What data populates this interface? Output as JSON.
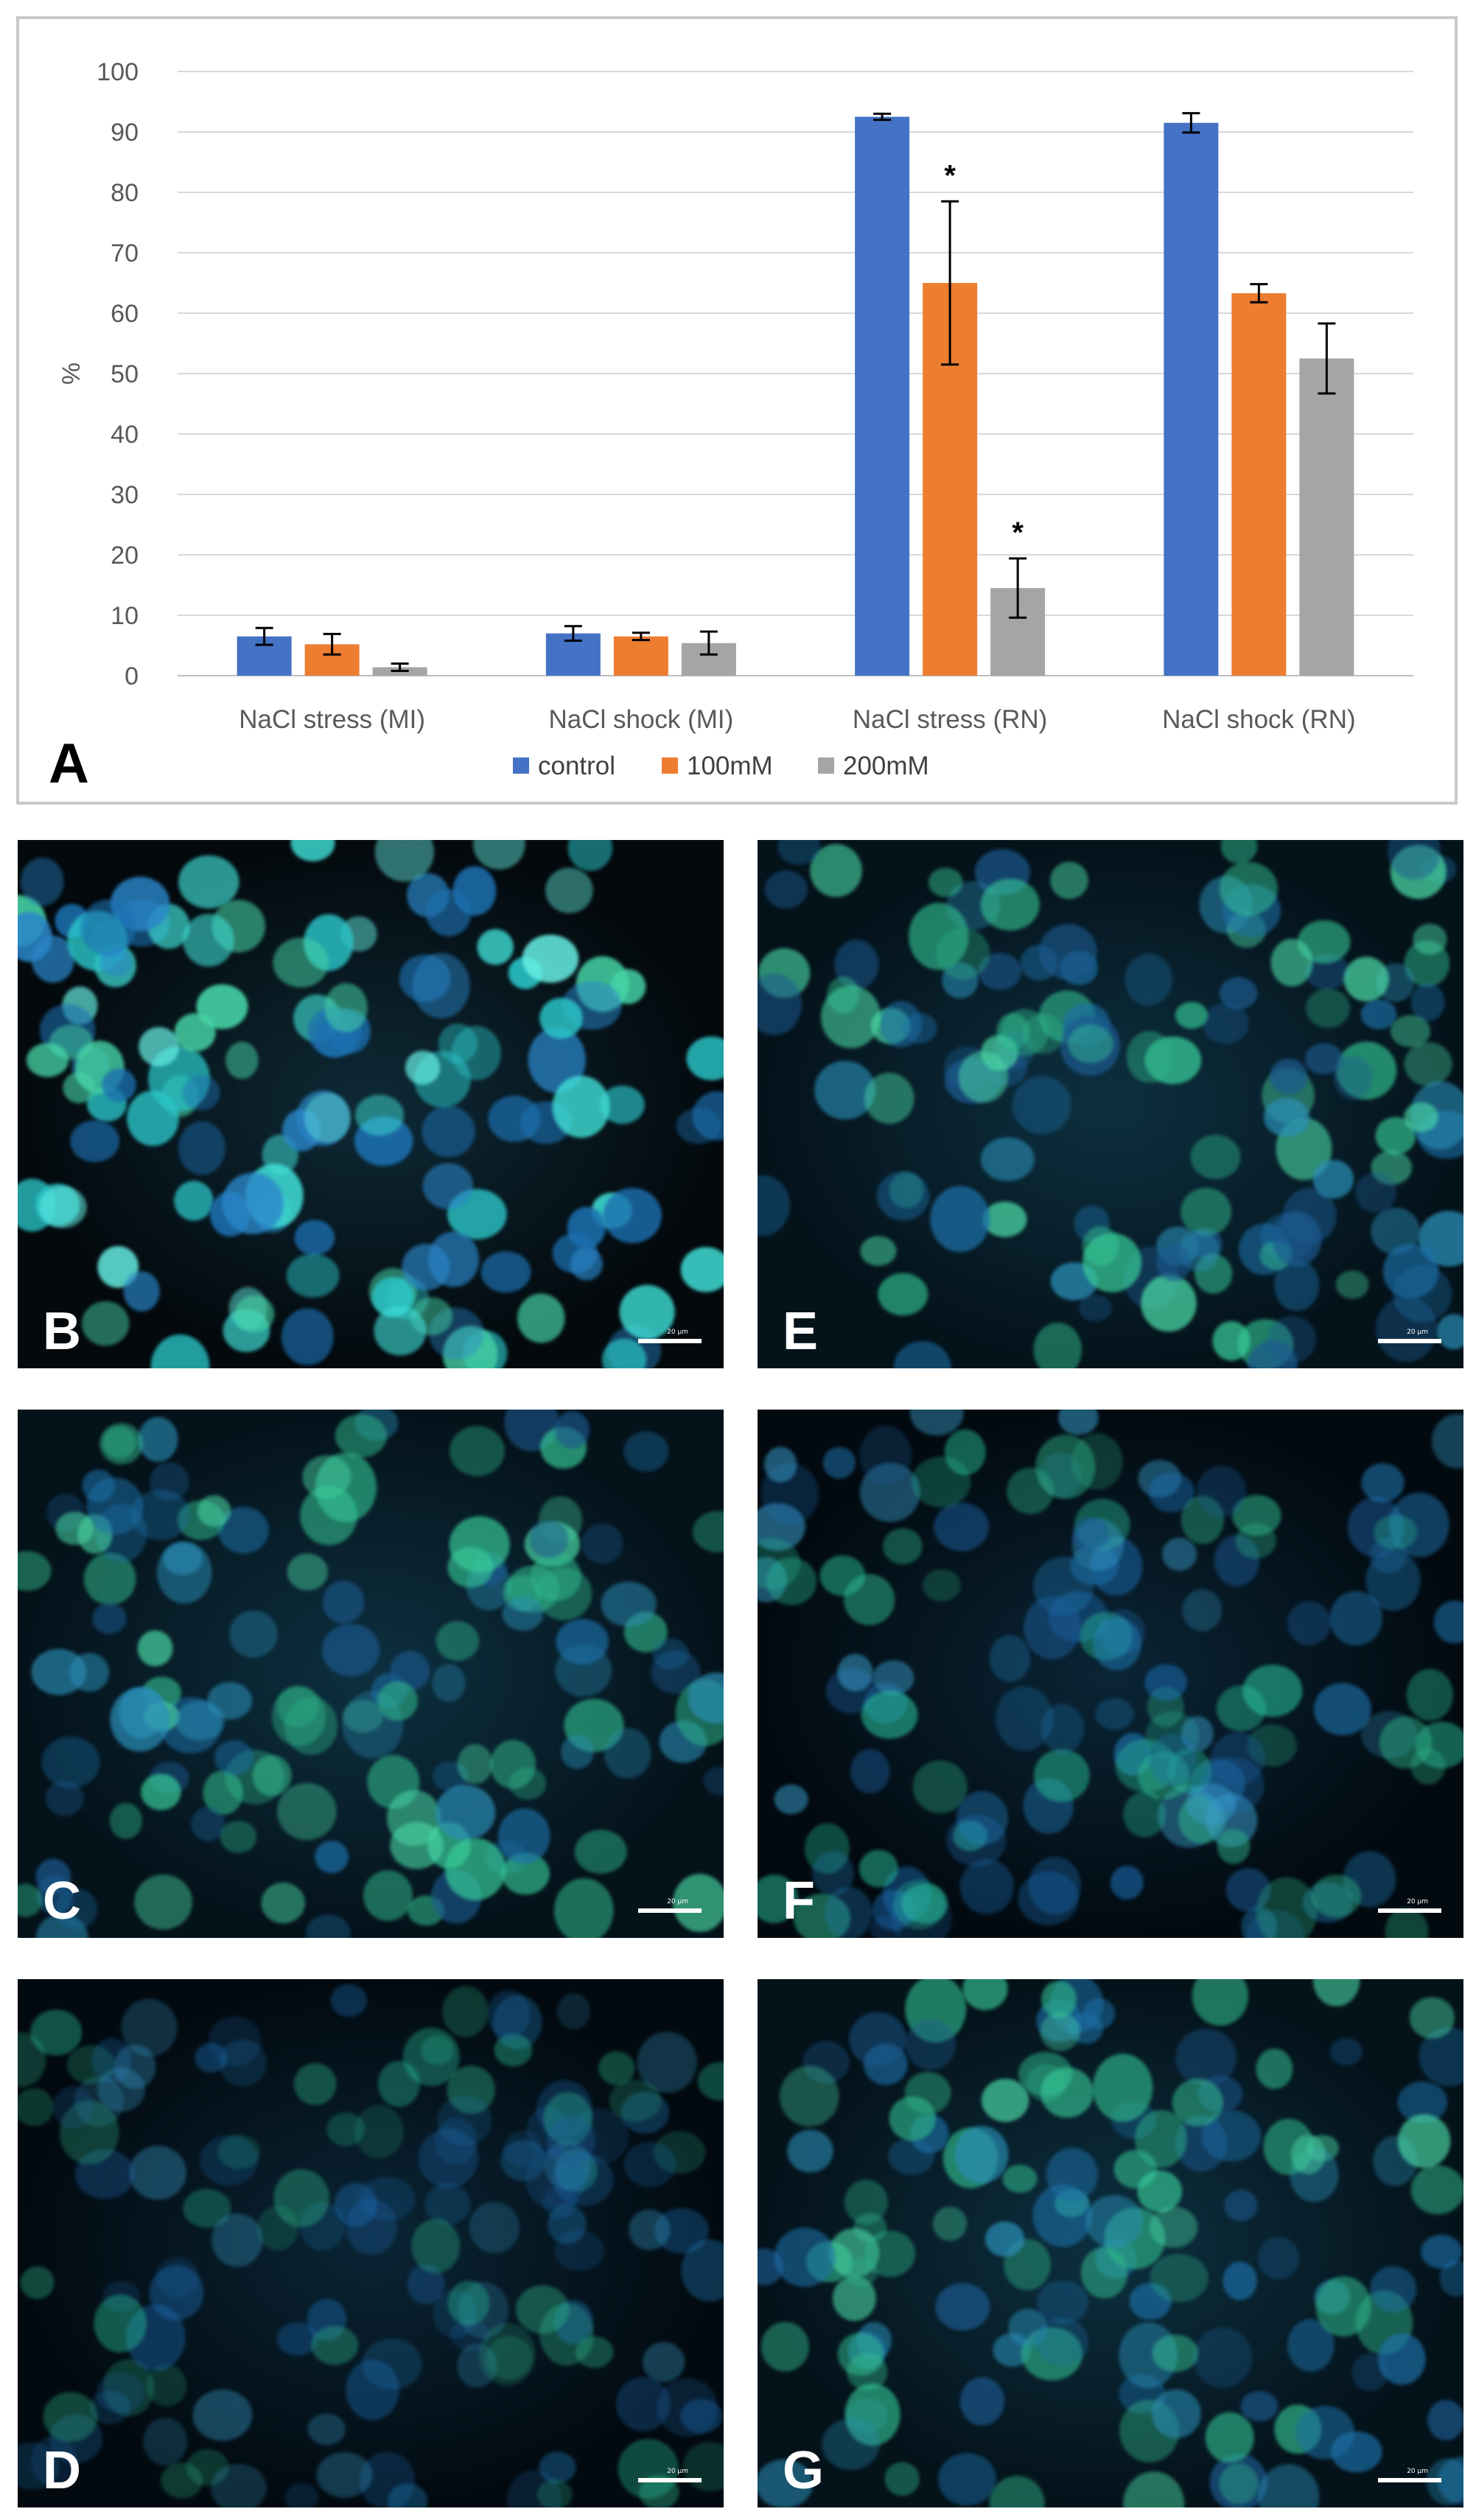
{
  "chart_data": {
    "type": "bar",
    "panel_label": "A",
    "ylabel": "%",
    "ylim": [
      0,
      100
    ],
    "yticks": [
      0,
      10,
      20,
      30,
      40,
      50,
      60,
      70,
      80,
      90,
      100
    ],
    "grid": true,
    "legend_position": "bottom",
    "categories": [
      "NaCl stress (MI)",
      "NaCl shock (MI)",
      "NaCl stress (RN)",
      "NaCl shock (RN)"
    ],
    "series": [
      {
        "name": "control",
        "color": "#4472C4",
        "values": [
          6.5,
          7.0,
          92.5,
          91.5
        ],
        "errors": [
          1.4,
          1.2,
          0.5,
          1.6
        ],
        "annotations": [
          "",
          "",
          "",
          ""
        ]
      },
      {
        "name": "100mM",
        "color": "#ED7D31",
        "values": [
          5.2,
          6.5,
          65.0,
          63.3
        ],
        "errors": [
          1.7,
          0.6,
          13.5,
          1.5
        ],
        "annotations": [
          "",
          "",
          "*",
          ""
        ]
      },
      {
        "name": "200mM",
        "color": "#A5A5A5",
        "values": [
          1.4,
          5.4,
          14.5,
          52.5
        ],
        "errors": [
          0.6,
          1.9,
          4.9,
          5.8
        ],
        "annotations": [
          "",
          "",
          "*",
          ""
        ]
      }
    ]
  },
  "micrographs": [
    {
      "label": "B",
      "scale_text": "20 µm",
      "tone": "cyan",
      "brightness": 0.9
    },
    {
      "label": "E",
      "scale_text": "20 µm",
      "tone": "green",
      "brightness": 0.75
    },
    {
      "label": "C",
      "scale_text": "20 µm",
      "tone": "green",
      "brightness": 0.7
    },
    {
      "label": "F",
      "scale_text": "20 µm",
      "tone": "blue",
      "brightness": 0.55
    },
    {
      "label": "D",
      "scale_text": "20 µm",
      "tone": "blue",
      "brightness": 0.4
    },
    {
      "label": "G",
      "scale_text": "20 µm",
      "tone": "green",
      "brightness": 0.7
    }
  ]
}
